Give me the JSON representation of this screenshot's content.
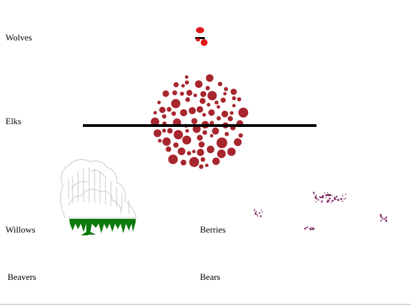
{
  "labels": {
    "wolves": "Wolves",
    "elks": "Elks",
    "willows": "Willows",
    "berries": "Berries",
    "beavers": "Beavers",
    "bears": "Bears"
  },
  "colors": {
    "wolf": "#e0191a",
    "elk": "#a8262e",
    "willow_foliage": "#0b7a0b",
    "willow_trunk": "#0b7a0b",
    "willow_outline": "#c8c8c8",
    "berry": "#7a1f5c",
    "elk_bar": "#000000"
  },
  "icons": {
    "wolves": "wolf-pack-icon",
    "elks": "elk-herd-cluster",
    "willows": "willow-tree-icon",
    "berries": "berry-clusters"
  }
}
